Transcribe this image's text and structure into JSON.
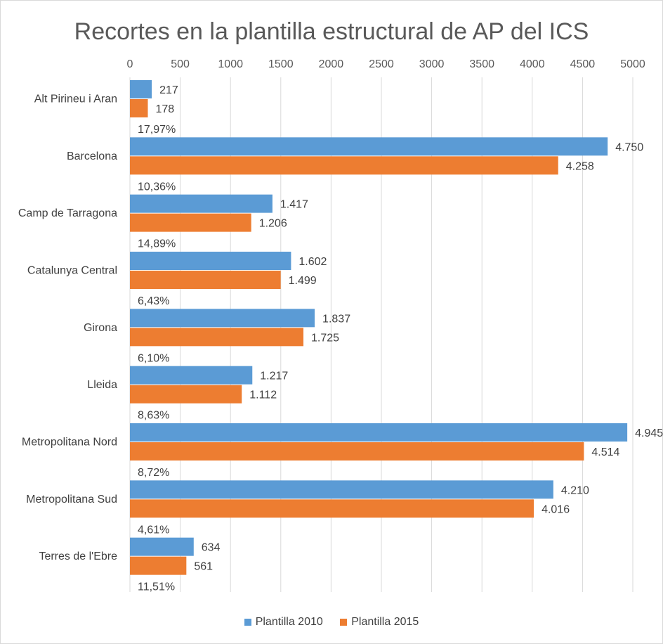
{
  "chart_data": {
    "type": "bar",
    "orientation": "horizontal",
    "title": "Recortes en la plantilla estructural de AP del ICS",
    "xlim": [
      0,
      5000
    ],
    "x_ticks": [
      0,
      500,
      1000,
      1500,
      2000,
      2500,
      3000,
      3500,
      4000,
      4500,
      5000
    ],
    "x_axis_position": "top",
    "grid": "vertical",
    "legend_position": "bottom",
    "categories": [
      "Alt Pirineu i Aran",
      "Barcelona",
      "Camp de Tarragona",
      "Catalunya Central",
      "Girona",
      "Lleida",
      "Metropolitana Nord",
      "Metropolitana Sud",
      "Terres de l'Ebre"
    ],
    "series": [
      {
        "name": "Plantilla 2010",
        "color": "#5b9bd5",
        "values": [
          217,
          4750,
          1417,
          1602,
          1837,
          1217,
          4945,
          4210,
          634
        ],
        "labels": [
          "217",
          "4.750",
          "1.417",
          "1.602",
          "1.837",
          "1.217",
          "4.945",
          "4.210",
          "634"
        ]
      },
      {
        "name": "Plantilla 2015",
        "color": "#ed7d31",
        "values": [
          178,
          4258,
          1206,
          1499,
          1725,
          1112,
          4514,
          4016,
          561
        ],
        "labels": [
          "178",
          "4.258",
          "1.206",
          "1.499",
          "1.725",
          "1.112",
          "4.514",
          "4.016",
          "561"
        ]
      }
    ],
    "percent_labels": [
      "17,97%",
      "10,36%",
      "14,89%",
      "6,43%",
      "6,10%",
      "8,63%",
      "8,72%",
      "4,61%",
      "11,51%"
    ]
  }
}
